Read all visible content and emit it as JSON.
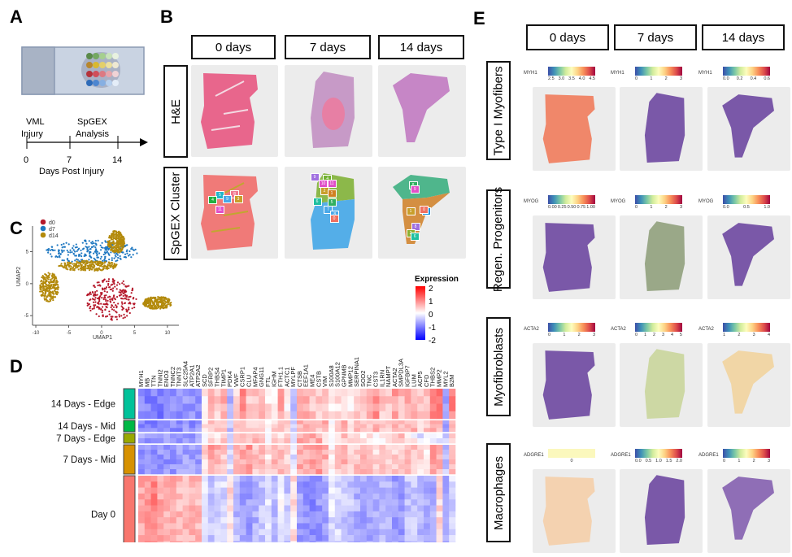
{
  "panels": {
    "A": {
      "label": "A",
      "timeline": {
        "events": [
          {
            "line1": "VML",
            "line2": "Injury",
            "day": "0"
          },
          {
            "line1": "SpGEX",
            "line2": "Analysis",
            "day": "14"
          }
        ],
        "ticks": [
          "0",
          "7",
          "14"
        ],
        "axis_label": "Days Post Injury"
      }
    },
    "B": {
      "label": "B",
      "columns": [
        "0 days",
        "7 days",
        "14 days"
      ],
      "rows": [
        "H&E",
        "SpGEX Cluster"
      ],
      "cluster_labels": {
        "day0": [
          "5",
          "8",
          "4",
          "9",
          "3",
          "11"
        ],
        "day7": [
          "9",
          "4",
          "10",
          "11",
          "2",
          "1",
          "6",
          "5",
          "7",
          "8",
          "0"
        ],
        "day14": [
          "8",
          "9",
          "1",
          "7",
          "0",
          "8",
          "2",
          "6"
        ]
      }
    },
    "C": {
      "label": "C",
      "legend": [
        {
          "name": "d0",
          "color": "#b5192b"
        },
        {
          "name": "d7",
          "color": "#1f78c1"
        },
        {
          "name": "d14",
          "color": "#b38a0c"
        }
      ]
    },
    "D": {
      "label": "D",
      "groups": [
        {
          "name": "14 Days - Edge",
          "color": "#00c29a"
        },
        {
          "name": "14 Days - Mid",
          "color": "#00b845"
        },
        {
          "name": "7 Days - Edge",
          "color": "#99a800"
        },
        {
          "name": "7 Days - Mid",
          "color": "#d69100"
        },
        {
          "name": "Day 0",
          "color": "#f8766d"
        }
      ],
      "legend": {
        "title": "Expression",
        "ticks": [
          "2",
          "1",
          "0",
          "-1",
          "-2"
        ]
      }
    },
    "E": {
      "label": "E",
      "columns": [
        "0 days",
        "7 days",
        "14 days"
      ],
      "rows": [
        {
          "name": "Type I Myofibers",
          "gene": "MYH1",
          "scales": [
            [
              "2.5",
              "3.0",
              "3.5",
              "4.0",
              "4.5"
            ],
            [
              "0",
              "1",
              "2",
              "3"
            ],
            [
              "0.0",
              "0.2",
              "0.4",
              "0.6"
            ]
          ]
        },
        {
          "name": "Regen. Progenitors",
          "gene": "MYOG",
          "scales": [
            [
              "0.00",
              "0.25",
              "0.50",
              "0.75",
              "1.00"
            ],
            [
              "0",
              "1",
              "2",
              "3"
            ],
            [
              "0.0",
              "0.5",
              "1.0"
            ]
          ]
        },
        {
          "name": "Myofibroblasts",
          "gene": "ACTA2",
          "scales": [
            [
              "0",
              "1",
              "2",
              "3"
            ],
            [
              "0",
              "1",
              "2",
              "3",
              "4",
              "5"
            ],
            [
              "1",
              "2",
              "3",
              "4"
            ]
          ]
        },
        {
          "name": "Macrophages",
          "gene": "ADGRE1",
          "scales": [
            [
              "0"
            ],
            [
              "0.0",
              "0.5",
              "1.0",
              "1.5",
              "2.0"
            ],
            [
              "0",
              "1",
              "2",
              "3"
            ]
          ]
        }
      ]
    }
  },
  "chart_data": [
    {
      "type": "scatter",
      "title": "",
      "xlabel": "UMAP1",
      "ylabel": "UMAP2",
      "xlim": [
        -10.5,
        11.5
      ],
      "ylim": [
        -6.5,
        9
      ],
      "xticks": [
        "-10",
        "-5",
        "0",
        "5",
        "10"
      ],
      "yticks": [
        "-5",
        "0",
        "5"
      ],
      "legend_position": "top-left",
      "series": [
        {
          "name": "d0",
          "color": "#b5192b",
          "clusters": [
            {
              "cx": 1.5,
              "cy": -2.5,
              "rx": 3.8,
              "ry": 3.3
            }
          ]
        },
        {
          "name": "d7",
          "color": "#1f78c1",
          "clusters": [
            {
              "cx": -1.5,
              "cy": 5.0,
              "rx": 7.0,
              "ry": 1.8
            }
          ]
        },
        {
          "name": "d14",
          "color": "#b38a0c",
          "clusters": [
            {
              "cx": -8.0,
              "cy": -0.5,
              "rx": 1.5,
              "ry": 2.3
            },
            {
              "cx": -2.0,
              "cy": 2.8,
              "rx": 4.5,
              "ry": 0.8
            },
            {
              "cx": 8.5,
              "cy": -3.0,
              "rx": 2.2,
              "ry": 1.0
            },
            {
              "cx": 2.2,
              "cy": 6.5,
              "rx": 1.3,
              "ry": 1.8
            }
          ]
        }
      ]
    },
    {
      "type": "heatmap",
      "title": "",
      "genes": [
        "MYH1",
        "MB",
        "TTN",
        "TNNI2",
        "ENO3",
        "TNNC2",
        "TNNT3",
        "SLC25A4",
        "ATP2A1",
        "ATP2A2",
        "SCD",
        "SFRP2",
        "THBS4",
        "TIMP1",
        "PDK4",
        "VWF",
        "CSRP1",
        "CLU",
        "MFAP4",
        "GNG11",
        "FTL",
        "IGHM",
        "FTH1.1",
        "ACTC1",
        "MYLPF",
        "CTSB",
        "EEF1A1",
        "ME4",
        "CSTB",
        "VIM",
        "S100A8",
        "S100A12",
        "GPNMB",
        "MMP12",
        "SERPINA1",
        "SOD2",
        "TNC",
        "CST3",
        "IL1RN",
        "NAMPT",
        "ACTA2",
        "SMPDL3A",
        "IGFBP7",
        "LUM",
        "ACP5",
        "CFD",
        "THBS2",
        "MMP2",
        "MYL2",
        "B2M"
      ],
      "groups": [
        "14 Days - Edge",
        "14 Days - Mid",
        "7 Days - Edge",
        "7 Days - Mid",
        "Day 0"
      ],
      "group_rows": [
        4,
        3,
        2,
        6,
        13
      ],
      "mean_expression": {
        "14 Days - Edge": [
          -1.2,
          -1.3,
          -1.3,
          -1.4,
          -1.3,
          -1.2,
          -1.2,
          -1.1,
          -1.2,
          -1.1,
          0.1,
          0.7,
          0.5,
          0.8,
          -0.8,
          0.5,
          1.2,
          0.6,
          0.6,
          0.8,
          0.3,
          0.1,
          0.9,
          0.2,
          -0.8,
          0.9,
          0.8,
          0.6,
          0.6,
          0.6,
          0.2,
          0.3,
          0.5,
          0.2,
          0.6,
          0.6,
          0.9,
          1.2,
          0.6,
          0.6,
          1.0,
          0.7,
          1.0,
          0.8,
          0.6,
          0.6,
          1.5,
          1.5,
          -1.0,
          1.3
        ],
        "14 Days - Mid": [
          -1.2,
          -1.3,
          -1.3,
          -1.4,
          -1.3,
          -1.2,
          -1.2,
          -1.1,
          -1.2,
          -1.1,
          0.2,
          0.6,
          0.5,
          0.6,
          -0.6,
          0.7,
          0.8,
          0.6,
          0.6,
          0.6,
          0.1,
          0.4,
          0.6,
          0.4,
          -0.4,
          0.8,
          0.8,
          0.8,
          0.6,
          0.9,
          0.1,
          0.8,
          0.8,
          0.5,
          0.6,
          0.8,
          0.7,
          0.8,
          0.5,
          0.6,
          0.8,
          0.6,
          0.8,
          0.8,
          0.3,
          0.6,
          0.8,
          0.8,
          -1.1,
          0.6
        ],
        "7 Days - Edge": [
          -1.0,
          -1.1,
          -1.0,
          -1.1,
          -1.0,
          -1.0,
          -1.0,
          -1.0,
          -1.0,
          -1.0,
          0.1,
          0.4,
          0.3,
          0.6,
          -0.5,
          0.4,
          0.5,
          0.3,
          0.8,
          0.6,
          0.1,
          0.7,
          0.2,
          0.5,
          -0.3,
          0.9,
          0.9,
          0.9,
          0.9,
          0.2,
          -0.2,
          0.2,
          0.6,
          0.3,
          0.7,
          0.2,
          0.4,
          0.2,
          0.2,
          0.4,
          0.3,
          0.7,
          0.2,
          0.1,
          -0.3,
          -0.3,
          -0.3,
          -0.2,
          -0.6,
          0.5
        ],
        "7 Days - Mid": [
          -1.1,
          -1.1,
          -1.1,
          -1.1,
          -1.1,
          -1.1,
          -1.0,
          -1.0,
          -1.0,
          -1.0,
          0.4,
          1.0,
          0.8,
          0.6,
          -0.4,
          0.8,
          0.9,
          1.1,
          0.6,
          0.7,
          0.3,
          0.7,
          0.6,
          0.4,
          -0.3,
          0.9,
          0.9,
          1.0,
          1.0,
          0.8,
          0.2,
          0.6,
          0.8,
          0.5,
          0.6,
          0.7,
          0.6,
          0.4,
          0.5,
          0.4,
          0.5,
          0.6,
          0.7,
          0.6,
          0.4,
          0.2,
          1.0,
          0.8,
          -0.6,
          0.7
        ],
        "Day 0": [
          0.9,
          1.0,
          1.3,
          0.9,
          0.8,
          0.8,
          0.7,
          0.7,
          0.8,
          0.7,
          -0.3,
          -0.6,
          -0.5,
          -0.4,
          0.4,
          -0.7,
          -1.0,
          -1.0,
          -0.8,
          -0.6,
          -0.2,
          -0.7,
          -0.1,
          -0.6,
          0.3,
          -1.0,
          -1.1,
          -1.2,
          -1.1,
          -1.0,
          -0.3,
          -0.4,
          -0.6,
          -0.6,
          -0.8,
          -0.9,
          -0.9,
          -0.9,
          -0.7,
          -0.8,
          -1.0,
          -1.0,
          -0.6,
          -0.6,
          -0.8,
          -0.9,
          -0.9,
          0.4,
          -0.8,
          -0.4
        ]
      },
      "color_scale": {
        "min": -2,
        "max": 2,
        "low": "#0000ff",
        "mid": "#ffffff",
        "high": "#ff0000"
      },
      "legend": {
        "title": "Expression",
        "ticks": [
          "2",
          "1",
          "0",
          "-1",
          "-2"
        ],
        "position": "right"
      }
    }
  ]
}
